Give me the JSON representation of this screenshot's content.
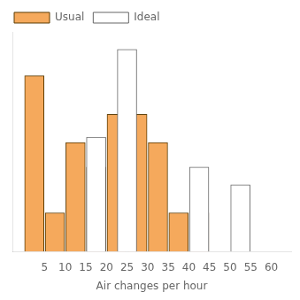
{
  "chart_data": {
    "type": "bar",
    "xlabel": "Air changes per hour",
    "series": [
      {
        "name": "Usual",
        "color": "#F5A95C",
        "x": [
          2.5,
          7.5,
          12.5,
          17.5,
          22.5,
          27.5,
          32.5,
          37.5,
          42.5
        ],
        "values": [
          100,
          22,
          62,
          48,
          78,
          78,
          62,
          22,
          22
        ]
      },
      {
        "name": "Ideal",
        "color": "white",
        "x": [
          17.5,
          25,
          42.5,
          52.5
        ],
        "values": [
          65,
          115,
          48,
          38
        ]
      }
    ],
    "xlim": [
      0,
      62
    ],
    "ylim": [
      0,
      125
    ],
    "xticks": [
      5,
      10,
      15,
      20,
      25,
      30,
      35,
      40,
      45,
      50,
      55,
      60
    ],
    "grid": false,
    "legend": "upper left",
    "tick_labels": "x"
  }
}
